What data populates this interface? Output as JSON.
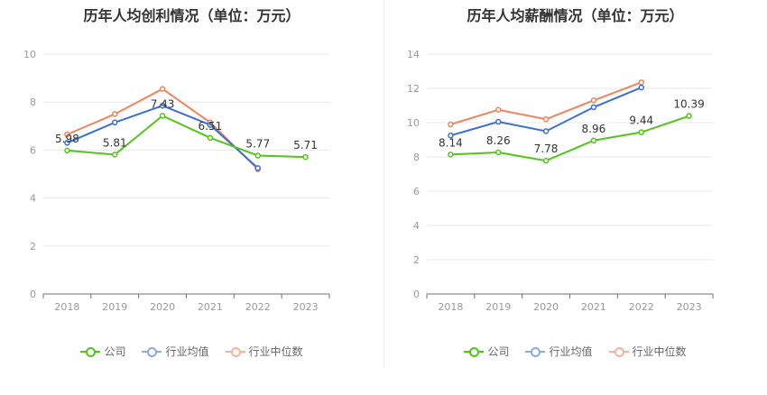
{
  "chart_data": [
    {
      "type": "line",
      "title": "历年人均创利情况（单位：万元）",
      "categories": [
        "2018",
        "2019",
        "2020",
        "2021",
        "2022",
        "2023"
      ],
      "ylim": [
        0,
        10
      ],
      "yticks": [
        0,
        2,
        4,
        6,
        8,
        10
      ],
      "grid": true,
      "legend_position": "bottom",
      "series": [
        {
          "name": "公司",
          "color": "#52c41a",
          "values": [
            5.98,
            5.81,
            7.43,
            6.51,
            5.77,
            5.71
          ],
          "labels": [
            "5.98",
            "5.81",
            "7.43",
            "6.51",
            "5.77",
            "5.71"
          ]
        },
        {
          "name": "行业均值",
          "color": "#3a6fd8",
          "values": [
            6.3,
            7.15,
            7.85,
            7.05,
            5.25,
            null
          ]
        },
        {
          "name": "行业中位数",
          "color": "#f0845c",
          "values": [
            6.65,
            7.5,
            8.55,
            7.15,
            5.2,
            null
          ]
        }
      ]
    },
    {
      "type": "line",
      "title": "历年人均薪酬情况（单位：万元）",
      "categories": [
        "2018",
        "2019",
        "2020",
        "2021",
        "2022",
        "2023"
      ],
      "ylim": [
        0,
        14
      ],
      "yticks": [
        0,
        2,
        4,
        6,
        8,
        10,
        12,
        14
      ],
      "grid": true,
      "legend_position": "bottom",
      "series": [
        {
          "name": "公司",
          "color": "#52c41a",
          "values": [
            8.14,
            8.26,
            7.78,
            8.96,
            9.44,
            10.39
          ],
          "labels": [
            "8.14",
            "8.26",
            "7.78",
            "8.96",
            "9.44",
            "10.39"
          ]
        },
        {
          "name": "行业均值",
          "color": "#3a6fd8",
          "values": [
            9.25,
            10.05,
            9.5,
            10.9,
            12.05,
            null
          ]
        },
        {
          "name": "行业中位数",
          "color": "#f0845c",
          "values": [
            9.9,
            10.75,
            10.2,
            11.3,
            12.35,
            null
          ]
        }
      ]
    }
  ],
  "legend": {
    "items": [
      {
        "label": "公司",
        "color": "#52c41a"
      },
      {
        "label": "行业均值",
        "color": "#8fa9e6"
      },
      {
        "label": "行业中位数",
        "color": "#f5b49a"
      }
    ]
  }
}
